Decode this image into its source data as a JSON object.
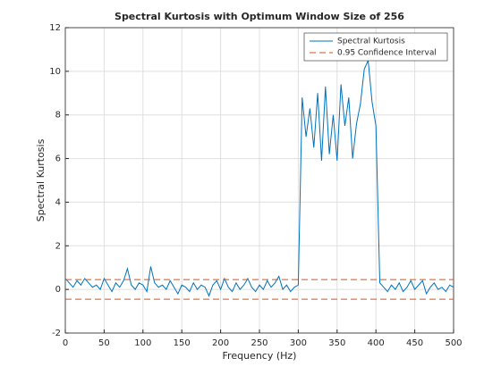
{
  "chart_data": {
    "type": "line",
    "title": "Spectral Kurtosis with Optimum Window Size of 256",
    "xlabel": "Frequency (Hz)",
    "ylabel": "Spectral Kurtosis",
    "x": [
      0,
      5,
      10,
      15,
      20,
      25,
      30,
      35,
      40,
      45,
      50,
      55,
      60,
      65,
      70,
      75,
      80,
      85,
      90,
      95,
      100,
      105,
      110,
      115,
      120,
      125,
      130,
      135,
      140,
      145,
      150,
      155,
      160,
      165,
      170,
      175,
      180,
      185,
      190,
      195,
      200,
      205,
      210,
      215,
      220,
      225,
      230,
      235,
      240,
      245,
      250,
      255,
      260,
      265,
      270,
      275,
      280,
      285,
      290,
      295,
      300,
      305,
      310,
      315,
      320,
      325,
      330,
      335,
      340,
      345,
      350,
      355,
      360,
      365,
      370,
      375,
      380,
      385,
      390,
      395,
      400,
      405,
      410,
      415,
      420,
      425,
      430,
      435,
      440,
      445,
      450,
      455,
      460,
      465,
      470,
      475,
      480,
      485,
      490,
      495,
      500
    ],
    "series": [
      {
        "name": "Spectral Kurtosis",
        "color": "#0072bd",
        "values": [
          0.5,
          0.3,
          0.1,
          0.4,
          0.2,
          0.5,
          0.3,
          0.1,
          0.2,
          0.0,
          0.5,
          0.2,
          -0.1,
          0.3,
          0.1,
          0.4,
          0.95,
          0.2,
          0.0,
          0.3,
          0.2,
          -0.1,
          1.05,
          0.3,
          0.1,
          0.2,
          0.0,
          0.4,
          0.1,
          -0.2,
          0.2,
          0.1,
          -0.1,
          0.3,
          0.0,
          0.2,
          0.1,
          -0.3,
          0.2,
          0.4,
          0.0,
          0.5,
          0.1,
          -0.1,
          0.3,
          0.0,
          0.2,
          0.5,
          0.1,
          -0.1,
          0.2,
          0.0,
          0.4,
          0.1,
          0.3,
          0.6,
          0.0,
          0.2,
          -0.1,
          0.1,
          0.2,
          8.8,
          7.0,
          8.3,
          6.5,
          9.0,
          5.9,
          9.3,
          6.2,
          8.0,
          5.9,
          9.4,
          7.5,
          8.8,
          6.0,
          7.6,
          8.5,
          10.1,
          10.5,
          8.6,
          7.5,
          0.3,
          0.1,
          -0.1,
          0.2,
          0.0,
          0.3,
          -0.1,
          0.1,
          0.4,
          0.0,
          0.2,
          0.4,
          -0.2,
          0.1,
          0.3,
          0.0,
          0.1,
          -0.1,
          0.2,
          0.1
        ]
      },
      {
        "name": "0.95 Confidence Interval",
        "color": "#d95319",
        "dashed": true,
        "levels": [
          0.45,
          -0.45
        ]
      }
    ],
    "xlim": [
      0,
      500
    ],
    "xticks": [
      0,
      50,
      100,
      150,
      200,
      250,
      300,
      350,
      400,
      450,
      500
    ],
    "ylim": [
      -2,
      12
    ],
    "yticks": [
      -2,
      0,
      2,
      4,
      6,
      8,
      10,
      12
    ],
    "grid": true,
    "legend": "top-right"
  }
}
